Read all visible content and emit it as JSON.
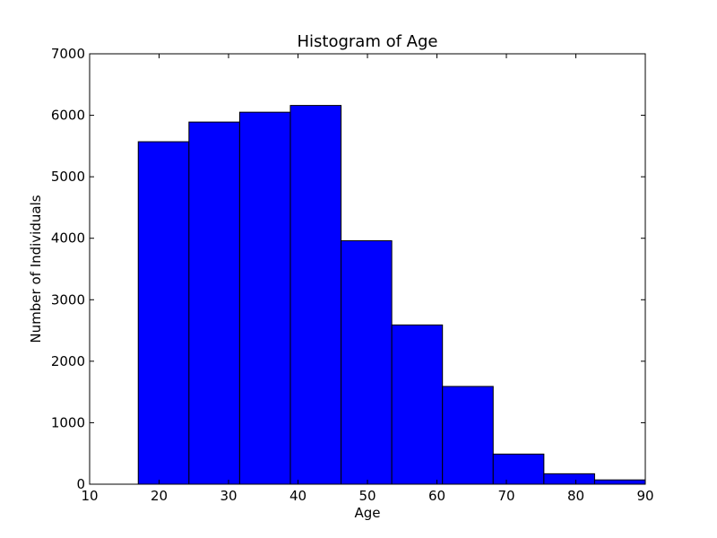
{
  "chart_data": {
    "type": "bar",
    "title": "Histogram of Age",
    "xlabel": "Age",
    "ylabel": "Number of Individuals",
    "xlim": [
      10,
      90
    ],
    "ylim": [
      0,
      7000
    ],
    "xticks": [
      10,
      20,
      30,
      40,
      50,
      60,
      70,
      80,
      90
    ],
    "yticks": [
      0,
      1000,
      2000,
      3000,
      4000,
      5000,
      6000,
      7000
    ],
    "bin_edges": [
      17,
      24.3,
      31.6,
      38.9,
      46.2,
      53.5,
      60.8,
      68.1,
      75.4,
      82.7,
      90
    ],
    "values": [
      5570,
      5890,
      6050,
      6160,
      3960,
      2590,
      1590,
      490,
      170,
      70
    ],
    "bar_color": "#0000ff",
    "edge_color": "#000000",
    "grid": false,
    "legend": false
  }
}
